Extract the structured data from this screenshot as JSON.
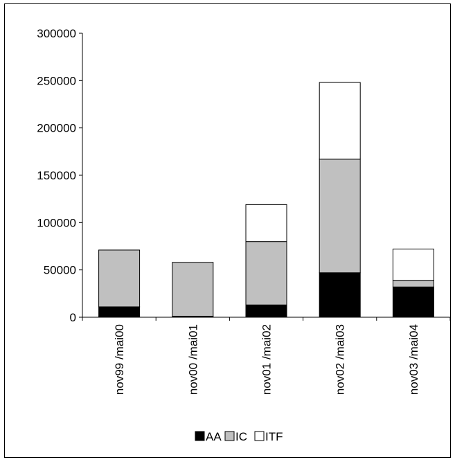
{
  "chart_data": {
    "type": "bar",
    "stacked": true,
    "title": "",
    "xlabel": "",
    "ylabel": "",
    "ylim": [
      0,
      300000
    ],
    "yticks": [
      "0",
      "50000",
      "100000",
      "150000",
      "200000",
      "250000",
      "300000"
    ],
    "categories": [
      "nov99 /mai00",
      "nov00 /mai01",
      "nov01 /mai02",
      "nov02 /mai03",
      "nov03 /mai04"
    ],
    "series": [
      {
        "name": "AA",
        "color": "#000000",
        "values": [
          11000,
          1000,
          13000,
          47000,
          32000
        ]
      },
      {
        "name": "IC",
        "color": "#c0c0c0",
        "values": [
          60000,
          57000,
          67000,
          120000,
          7000
        ]
      },
      {
        "name": "ITF",
        "color": "#ffffff",
        "values": [
          0,
          0,
          39000,
          81000,
          33000
        ]
      }
    ],
    "grid": false,
    "legend_position": "bottom"
  }
}
